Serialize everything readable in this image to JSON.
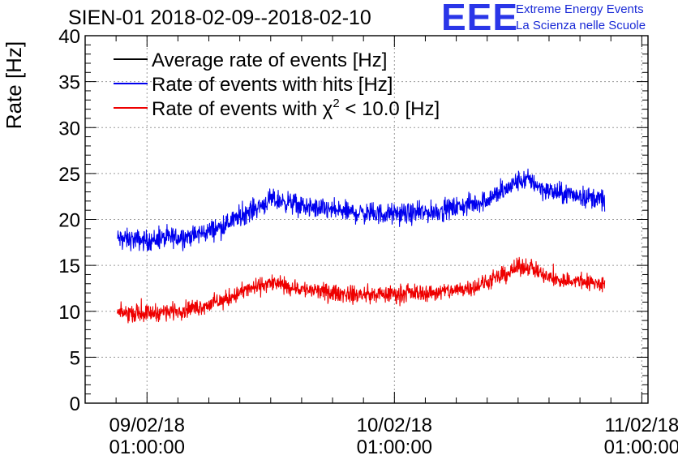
{
  "header": {
    "title": "SIEN-01 2018-02-09--2018-02-10"
  },
  "logo": {
    "mark": "EEE",
    "line1": "Extreme Energy Events",
    "line2": "La Scienza nelle Scuole"
  },
  "colors": {
    "avg": "#000000",
    "hits": "#0000ee",
    "chi2": "#ee0000",
    "grid": "#9a9a9a"
  },
  "chart_data": {
    "type": "line",
    "title": "SIEN-01 2018-02-09--2018-02-10",
    "xlabel": "",
    "ylabel": "Rate [Hz]",
    "ylim": [
      0,
      40
    ],
    "xlim": [
      -0.25,
      2.025
    ],
    "grid": true,
    "legend_position": "top-left",
    "yticks": [
      0,
      5,
      10,
      15,
      20,
      25,
      30,
      35,
      40
    ],
    "xticks": [
      {
        "pos": 0,
        "line1": "09/02/18",
        "line2": "01:00:00"
      },
      {
        "pos": 1,
        "line1": "10/02/18",
        "line2": "01:00:00"
      },
      {
        "pos": 2,
        "line1": "11/02/18",
        "line2": "01:00:00"
      }
    ],
    "x_unit": "days since 09/02/18 01:00:00",
    "series": [
      {
        "name": "Average rate of events [Hz]",
        "label_main": "Average rate of events [Hz]",
        "color_key": "avg",
        "x": [],
        "values": []
      },
      {
        "name": "Rate of events with hits [Hz]",
        "label_main": "Rate of events with hits [Hz]",
        "color_key": "hits",
        "noise": 0.55,
        "x": [
          -0.12,
          0.0,
          0.1,
          0.2,
          0.3,
          0.4,
          0.5,
          0.55,
          0.65,
          0.75,
          0.85,
          0.95,
          1.05,
          1.15,
          1.25,
          1.35,
          1.45,
          1.5,
          1.55,
          1.6,
          1.65,
          1.75,
          1.85
        ],
        "values": [
          17.9,
          17.7,
          18.0,
          18.3,
          19.2,
          20.7,
          22.1,
          22.0,
          21.3,
          21.0,
          20.7,
          20.6,
          20.6,
          20.8,
          21.3,
          21.9,
          23.2,
          24.2,
          24.3,
          23.3,
          22.9,
          22.6,
          22.1
        ]
      },
      {
        "name": "Rate of events with χ² < 10.0 [Hz]",
        "label_main": "Rate of events with χ",
        "label_sup": "2",
        "label_tail": " < 10.0 [Hz]",
        "color_key": "chi2",
        "noise": 0.45,
        "x": [
          -0.12,
          0.0,
          0.1,
          0.2,
          0.3,
          0.4,
          0.5,
          0.55,
          0.65,
          0.75,
          0.85,
          0.95,
          1.05,
          1.15,
          1.25,
          1.35,
          1.45,
          1.5,
          1.55,
          1.6,
          1.65,
          1.75,
          1.85
        ],
        "values": [
          9.8,
          9.8,
          10.0,
          10.4,
          11.1,
          12.3,
          13.1,
          12.8,
          12.3,
          12.0,
          11.8,
          11.8,
          12.0,
          12.0,
          12.3,
          12.9,
          14.0,
          14.8,
          14.9,
          13.9,
          13.4,
          13.3,
          12.9
        ]
      }
    ]
  }
}
